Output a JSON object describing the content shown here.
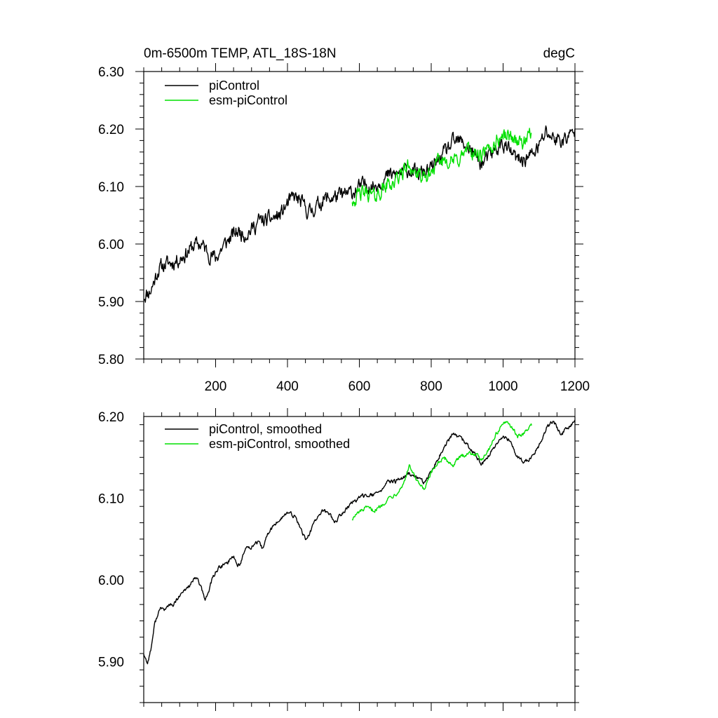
{
  "chart_data": [
    {
      "type": "line",
      "title": "0m-6500m TEMP, ATL_18S-18N",
      "units": "degC",
      "xlim": [
        0,
        1200
      ],
      "ylim": [
        5.8,
        6.3
      ],
      "x_ticks": [
        200,
        400,
        600,
        800,
        1000,
        1200
      ],
      "x_tick_labels": [
        "200",
        "400",
        "600",
        "800",
        "1000",
        "1200"
      ],
      "y_ticks": [
        5.8,
        5.9,
        6.0,
        6.1,
        6.2,
        6.3
      ],
      "y_tick_labels": [
        "5.80",
        "5.90",
        "6.00",
        "6.10",
        "6.20",
        "6.30"
      ],
      "legend_position": "top-left",
      "series": [
        {
          "name": "piControl",
          "color": "#000000",
          "noise": 0.011,
          "x": [
            0,
            20,
            40,
            60,
            80,
            100,
            120,
            140,
            160,
            180,
            200,
            220,
            240,
            260,
            280,
            300,
            320,
            340,
            360,
            380,
            400,
            420,
            440,
            460,
            480,
            500,
            520,
            540,
            560,
            580,
            600,
            620,
            640,
            660,
            680,
            700,
            720,
            740,
            760,
            780,
            800,
            820,
            840,
            860,
            880,
            900,
            920,
            940,
            960,
            980,
            1000,
            1020,
            1040,
            1060,
            1080,
            1100,
            1120,
            1140,
            1160,
            1180,
            1200
          ],
          "values": [
            5.91,
            5.92,
            5.955,
            5.965,
            5.968,
            5.975,
            5.985,
            5.998,
            6.0,
            5.985,
            5.975,
            5.995,
            6.01,
            6.022,
            6.018,
            6.025,
            6.04,
            6.04,
            6.045,
            6.05,
            6.07,
            6.082,
            6.07,
            6.055,
            6.065,
            6.078,
            6.08,
            6.083,
            6.085,
            6.09,
            6.098,
            6.105,
            6.1,
            6.11,
            6.118,
            6.12,
            6.125,
            6.13,
            6.12,
            6.125,
            6.13,
            6.145,
            6.16,
            6.175,
            6.178,
            6.17,
            6.155,
            6.14,
            6.15,
            6.165,
            6.175,
            6.16,
            6.145,
            6.148,
            6.155,
            6.17,
            6.195,
            6.185,
            6.18,
            6.185,
            6.195
          ]
        },
        {
          "name": "esm-piControl",
          "color": "#00e000",
          "noise": 0.011,
          "x": [
            580,
            600,
            620,
            640,
            660,
            680,
            700,
            720,
            740,
            760,
            780,
            800,
            820,
            840,
            860,
            880,
            900,
            920,
            940,
            960,
            980,
            1000,
            1020,
            1040,
            1060,
            1080
          ],
          "values": [
            6.078,
            6.085,
            6.09,
            6.082,
            6.092,
            6.105,
            6.108,
            6.125,
            6.138,
            6.12,
            6.11,
            6.125,
            6.14,
            6.15,
            6.142,
            6.15,
            6.162,
            6.158,
            6.15,
            6.162,
            6.178,
            6.19,
            6.188,
            6.18,
            6.175,
            6.19
          ]
        }
      ]
    },
    {
      "type": "line",
      "xlim": [
        0,
        1200
      ],
      "ylim": [
        5.85,
        6.2
      ],
      "x_ticks": [
        200,
        400,
        600,
        800,
        1000,
        1200
      ],
      "y_ticks": [
        5.9,
        6.0,
        6.1,
        6.2
      ],
      "y_tick_labels": [
        "5.90",
        "6.00",
        "6.10",
        "6.20"
      ],
      "legend_position": "top-left",
      "series": [
        {
          "name": "piControl, smoothed",
          "color": "#000000",
          "noise": 0.002,
          "x": [
            0,
            10,
            20,
            30,
            40,
            50,
            60,
            70,
            80,
            100,
            120,
            140,
            150,
            160,
            170,
            180,
            190,
            200,
            210,
            230,
            250,
            260,
            270,
            280,
            290,
            300,
            310,
            320,
            330,
            340,
            350,
            360,
            380,
            400,
            420,
            440,
            450,
            460,
            470,
            480,
            500,
            520,
            530,
            540,
            560,
            580,
            600,
            620,
            640,
            660,
            680,
            700,
            720,
            740,
            760,
            780,
            800,
            820,
            840,
            860,
            880,
            900,
            920,
            940,
            960,
            980,
            1000,
            1020,
            1040,
            1060,
            1080,
            1100,
            1120,
            1140,
            1160,
            1180,
            1200
          ],
          "values": [
            5.91,
            5.898,
            5.915,
            5.945,
            5.96,
            5.966,
            5.963,
            5.97,
            5.968,
            5.98,
            5.99,
            6.0,
            6.002,
            5.99,
            5.975,
            5.985,
            6.0,
            6.01,
            6.015,
            6.02,
            6.03,
            6.018,
            6.02,
            6.035,
            6.042,
            6.04,
            6.045,
            6.045,
            6.038,
            6.05,
            6.06,
            6.065,
            6.075,
            6.082,
            6.078,
            6.06,
            6.05,
            6.055,
            6.065,
            6.075,
            6.085,
            6.08,
            6.07,
            6.075,
            6.085,
            6.095,
            6.1,
            6.105,
            6.103,
            6.11,
            6.12,
            6.12,
            6.125,
            6.13,
            6.125,
            6.12,
            6.13,
            6.15,
            6.165,
            6.178,
            6.175,
            6.165,
            6.155,
            6.14,
            6.152,
            6.165,
            6.175,
            6.17,
            6.15,
            6.145,
            6.15,
            6.165,
            6.185,
            6.195,
            6.178,
            6.185,
            6.193
          ]
        },
        {
          "name": "esm-piControl, smoothed",
          "color": "#00e000",
          "noise": 0.002,
          "x": [
            580,
            600,
            620,
            640,
            660,
            680,
            700,
            720,
            740,
            760,
            780,
            800,
            820,
            840,
            860,
            880,
            900,
            920,
            940,
            960,
            980,
            1000,
            1020,
            1040,
            1060,
            1080
          ],
          "values": [
            6.075,
            6.083,
            6.088,
            6.085,
            6.09,
            6.1,
            6.105,
            6.115,
            6.14,
            6.12,
            6.11,
            6.13,
            6.145,
            6.148,
            6.14,
            6.15,
            6.155,
            6.155,
            6.148,
            6.16,
            6.178,
            6.192,
            6.19,
            6.175,
            6.18,
            6.19
          ]
        }
      ]
    }
  ]
}
